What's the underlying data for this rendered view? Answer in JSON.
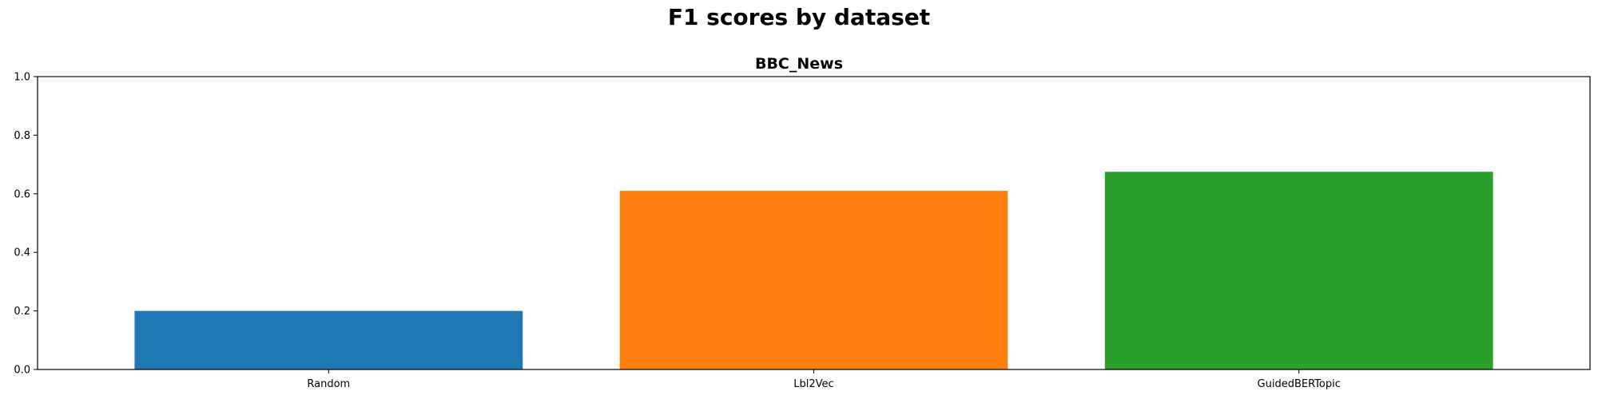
{
  "figure": {
    "title": "F1 scores by dataset"
  },
  "chart_data": {
    "type": "bar",
    "title": "BBC_News",
    "categories": [
      "Random",
      "Lbl2Vec",
      "GuidedBERTopic"
    ],
    "values": [
      0.2,
      0.61,
      0.675
    ],
    "colors": [
      "#1f77b4",
      "#ff7f0e",
      "#2ca02c"
    ],
    "xlabel": "",
    "ylabel": "",
    "ylim": [
      0,
      1.0
    ],
    "yticks": [
      0.0,
      0.2,
      0.4,
      0.6,
      0.8,
      1.0
    ],
    "ytick_labels": [
      "0.0",
      "0.2",
      "0.4",
      "0.6",
      "0.8",
      "1.0"
    ],
    "grid": false,
    "legend": "none"
  }
}
